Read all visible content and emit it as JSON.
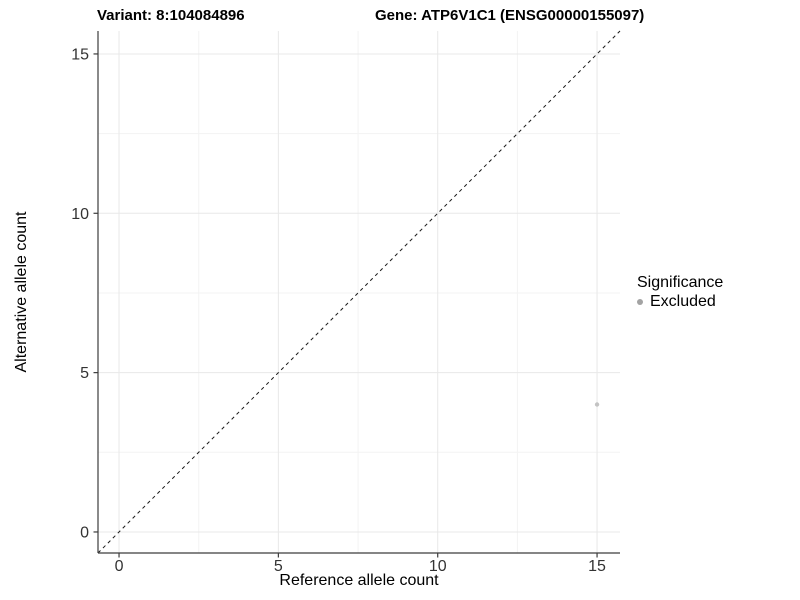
{
  "chart_data": {
    "type": "scatter",
    "titles": {
      "left": "Variant: 8:104084896",
      "right": "Gene: ATP6V1C1 (ENSG00000155097)"
    },
    "xlabel": "Reference allele count",
    "ylabel": "Alternative allele count",
    "xlim": [
      -0.66,
      15.72
    ],
    "ylim": [
      -0.66,
      15.72
    ],
    "x_ticks": [
      0,
      5,
      10,
      15
    ],
    "y_ticks": [
      0,
      5,
      10,
      15
    ],
    "x_minor_ticks": [
      2.5,
      7.5,
      12.5
    ],
    "y_minor_ticks": [
      2.5,
      7.5,
      12.5
    ],
    "grid": "major+minor",
    "identity_line": {
      "slope": 1,
      "intercept": 0,
      "style": "dashed",
      "color": "#1a1a1a"
    },
    "series": [
      {
        "name": "Excluded",
        "color": "#c3c3c3",
        "point_radius": 2.2,
        "points": [
          {
            "x": 15,
            "y": 4
          }
        ]
      }
    ],
    "legend": {
      "title": "Significance",
      "position": "right",
      "items": [
        {
          "label": "Excluded",
          "color": "#a3a3a3"
        }
      ]
    },
    "colors": {
      "axis_line": "#3c3c3c",
      "tick_label": "#333333",
      "grid_major": "#e8e8e8",
      "grid_minor": "#f3f3f3",
      "background": "#ffffff"
    }
  }
}
